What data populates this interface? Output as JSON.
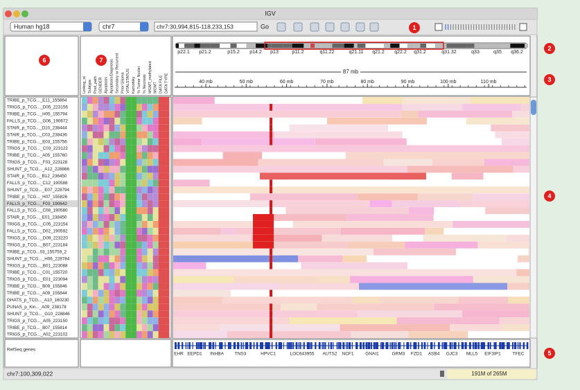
{
  "window": {
    "title": "IGV"
  },
  "toolbar": {
    "genome": "Human hg18",
    "chromosome": "chr7",
    "locus": "chr7:30,994,815-118,233,153",
    "go": "Go"
  },
  "callouts": [
    "1",
    "2",
    "3",
    "4",
    "5",
    "6",
    "7"
  ],
  "cytobands": [
    "p22.1",
    "p21.2",
    "p15.2",
    "p14.2",
    "p13",
    "p11.2",
    "q11.22",
    "q21.11",
    "q21.2",
    "q22.2",
    "q31.2",
    "q31.32",
    "q33",
    "q35",
    "q36.2"
  ],
  "ruler": {
    "span": "87 mb",
    "ticks": [
      "40 mb",
      "50 mb",
      "60 mb",
      "70 mb",
      "80 mb",
      "90 mb",
      "100 mb",
      "110 mb"
    ]
  },
  "attributes": [
    "Linking_id",
    "Subtype",
    "Pool_path",
    "GENDER",
    "Apoptosis",
    "Apoptosis/Diagnosis",
    "Secondary or Recurrent",
    "Prior Glioma",
    "VITALSTATUS",
    "Karnofsky",
    "% Tumor Nuclei",
    "% Necrosis",
    "MGMT_methylated",
    "MGMT",
    "DATA FILE",
    "DATA TYPE"
  ],
  "samples": [
    "TRIBE_p_TCG..._E11_155864",
    "TRIGS_p_TCG..._D05_223156",
    "TRIBE_p_TCG..._H05_155794",
    "FALLS_p_TCG..._G06_190672",
    "STAIR_p_TCG..._D10_238444",
    "STAIR_p_TCG..._C03_238436",
    "TRIBE_p_TCG..._E03_155756",
    "TRIGS_p_TCG..._C03_223122",
    "TRIBE_p_TCG..._A05_155760",
    "TRIGS_p_TCG..._F03_223128",
    "SHUNT_p_TCG..._A12_228866",
    "STAIR_p_TCG..._B12_236450",
    "FALLS_p_TCG..._C12_190588",
    "SHUNT_p_TCG..._E07_228794",
    "TRIBE_p_TCG..._H07_155826",
    "FALLS_p_TCG..._F03_190642",
    "FALLS_p_TCG..._C08_190580",
    "STAIR_p_TCG..._E01_238450",
    "TRIGS_p_TCG..._C05_223154",
    "FALLS_p_TCG..._D02_190592",
    "TRIGS_p_TCG..._D09_223220",
    "TRIGS_p_TCG..._B07_223184",
    "TRIBE_p_TCG...03_155759_2",
    "SHUNT_p_TCG..._H06_228784",
    "TRIGS_p_TCG..._B01_223088",
    "TRIBE_p_TCG..._C01_155720",
    "TRIGS_p_TCG..._E01_223094",
    "TRIBE_p_TCG..._B09_155846",
    "TRIBE_p_TCG..._A09_155844",
    "GHATS_p_TCG..._A10_160230",
    "PUNAS_p_Kin..._A09_238178",
    "SHUNT_p_TCG..._G10_228846",
    "TRIGS_p_TCG..._A05_223150",
    "TRIBE_p_TCG..._B07_155814",
    "TRIGS_p_TCG..._A02_223102"
  ],
  "gene_track": {
    "label": "RefSeq genes",
    "genes": [
      "EHR",
      "EEPD1",
      "INHBA",
      "TNS3",
      "HPVC1",
      "LOC643955",
      "AUTS2",
      "NCF1",
      "GNAI1",
      "GRM3",
      "FZD1",
      "ASB4",
      "GJC3",
      "MLL5",
      "EIF3IP1",
      "TFEC"
    ]
  },
  "status": {
    "position": "chr7:100,309,022",
    "memory": "191M of 265M"
  }
}
